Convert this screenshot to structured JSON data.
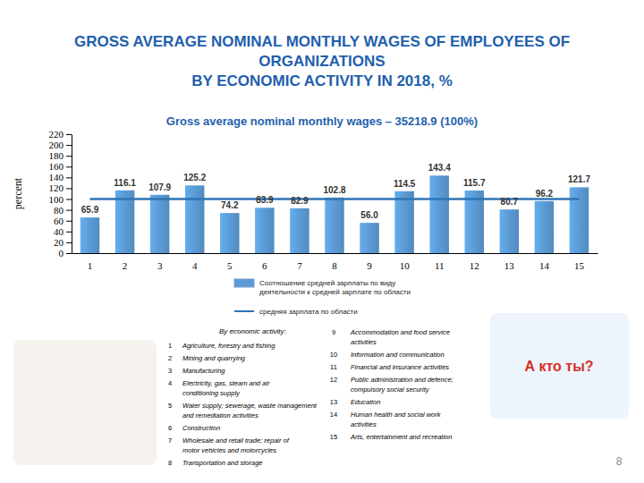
{
  "chart_data": {
    "type": "bar",
    "title": "GROSS AVERAGE NOMINAL MONTHLY WAGES OF EMPLOYEES OF\nORGANIZATIONS\nBY ECONOMIC ACTIVITY IN 2018, %",
    "subtitle": "Gross average nominal monthly wages – 35218.9 (100%)",
    "y_label": "percent",
    "categories": [
      "1",
      "2",
      "3",
      "4",
      "5",
      "6",
      "7",
      "8",
      "9",
      "10",
      "11",
      "12",
      "13",
      "14",
      "15"
    ],
    "series": [
      {
        "name": "Соотношение средней зарплаты по виду деятельности к средней зарплате по области",
        "type": "bar",
        "color": "#5b9bd5",
        "values": [
          65.9,
          116.1,
          107.9,
          125.2,
          74.2,
          83.9,
          82.9,
          102.8,
          56.0,
          114.5,
          143.4,
          115.7,
          80.7,
          96.2,
          121.7
        ],
        "value_labels": [
          "65.9",
          "116.1",
          "107.9",
          "125.2",
          "74.2",
          "83.9",
          "82.9",
          "102.8",
          "56.0",
          "114.5",
          "143.4",
          "115.7",
          "80.7",
          "96.2",
          "121.7"
        ]
      },
      {
        "name": "средняя зарплата по области",
        "type": "line",
        "color": "#2e75b6",
        "values": [
          100,
          100,
          100,
          100,
          100,
          100,
          100,
          100,
          100,
          100,
          100,
          100,
          100,
          100,
          100
        ]
      }
    ],
    "ylim": [
      0,
      220
    ],
    "yticks": [
      0,
      20,
      40,
      60,
      80,
      100,
      120,
      140,
      160,
      180,
      200,
      220
    ],
    "grid": false,
    "data_labels": true,
    "legend": "bottom"
  },
  "activity_key": {
    "title": "By economic activity:",
    "items": [
      {
        "number": 1,
        "label": "Agriculture, forestry and fishing"
      },
      {
        "number": 2,
        "label": "Mining and quarrying"
      },
      {
        "number": 3,
        "label": "Manufacturing"
      },
      {
        "number": 4,
        "label": "Electricity, gas, steam and air conditioning supply"
      },
      {
        "number": 5,
        "label": "Water supply; sewerage, waste management and remediation activities"
      },
      {
        "number": 6,
        "label": "Construction"
      },
      {
        "number": 7,
        "label": "Wholesale and retail trade; repair of motor vehicles and motorcycles"
      },
      {
        "number": 8,
        "label": "Transportation and storage"
      },
      {
        "number": 9,
        "label": "Accommodation and food service activities"
      },
      {
        "number": 10,
        "label": "Information and communication"
      },
      {
        "number": 11,
        "label": "Financial and insurance activities"
      },
      {
        "number": 12,
        "label": "Public administration and defence; compulsory social security"
      },
      {
        "number": 13,
        "label": "Education"
      },
      {
        "number": 14,
        "label": "Human health and social work activities"
      },
      {
        "number": 15,
        "label": "Arts, entertainment and recreation"
      }
    ]
  },
  "image_caption": "А кто ты?",
  "page_number": 8
}
